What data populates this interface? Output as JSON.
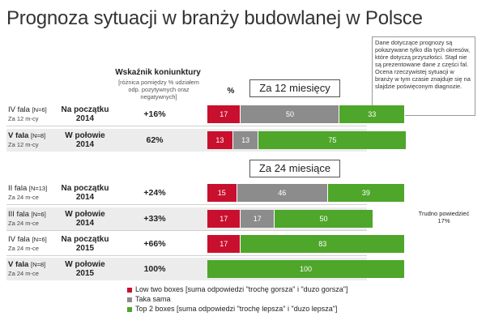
{
  "title": "Prognoza sytuacji w branży budowlanej w Polsce",
  "note": "Dane dotyczące prognozy są pokazywane tylko dla tych okresów, które dotyczą przyszłości. Stąd nie są prezentowane dane z części fal. Ocena rzeczywistej sytuacji w branży w tym czasie znajduje się na slajdzie poświęconym diagnozie.",
  "header": {
    "indicator_title": "Wskaźnik koniunktury",
    "indicator_subtitle": "[różnica pomiędzy % udziałem odp. pozytywnych oraz negatywnych]",
    "percent": "%"
  },
  "section_labels": [
    "Za 12 miesięcy",
    "Za 24 miesiące"
  ],
  "colors": {
    "low": "#c8102e",
    "same": "#8c8c8c",
    "top": "#4ea62a"
  },
  "chart_data": {
    "type": "bar",
    "orientation": "horizontal-stacked",
    "title": "Prognoza sytuacji w branży budowlanej w Polsce",
    "legend": [
      {
        "key": "low",
        "label": "Low two boxes [suma odpowiedzi \"trochę gorsza\" i \"duzo gorsza\"]"
      },
      {
        "key": "same",
        "label": "Taka sama"
      },
      {
        "key": "top",
        "label": "Top 2 boxes [suma odpowiedzi \"trochę lepsza\" i \"duzo lepsza\"]"
      }
    ],
    "rows": [
      {
        "wave": "IV fala",
        "n": "[N=6]",
        "period": "Za 12 m-cy",
        "when": "Na początku 2014",
        "index": "+16%",
        "low": 17,
        "same": 50,
        "top": 33,
        "section": 0
      },
      {
        "wave": "V fala",
        "n": "[N=8]",
        "period": "Za 12 m-cy",
        "when": "W połowie 2014",
        "index": "62%",
        "low": 13,
        "same": 13,
        "top": 75,
        "section": 0
      },
      {
        "wave": "II fala",
        "n": "[N=13]",
        "period": "Za 24 m-ce",
        "when": "Na początku 2014",
        "index": "+24%",
        "low": 15,
        "same": 46,
        "top": 39,
        "section": 1
      },
      {
        "wave": "III fala",
        "n": "[N=6]",
        "period": "Za 24 m-ce",
        "when": "W połowie 2014",
        "index": "+33%",
        "low": 17,
        "same": 17,
        "top": 50,
        "section": 1,
        "extra_label": "Trudno powiedzieć",
        "extra_value": "17%"
      },
      {
        "wave": "IV fala",
        "n": "[N=6]",
        "period": "Za 24 m-ce",
        "when": "Na początku 2015",
        "index": "+66%",
        "low": 17,
        "same": 0,
        "top": 83,
        "section": 1
      },
      {
        "wave": "V fala",
        "n": "[N=8]",
        "period": "Za 24 m-ce",
        "when": "W połowie 2015",
        "index": "100%",
        "low": 0,
        "same": 0,
        "top": 100,
        "section": 1
      }
    ]
  }
}
